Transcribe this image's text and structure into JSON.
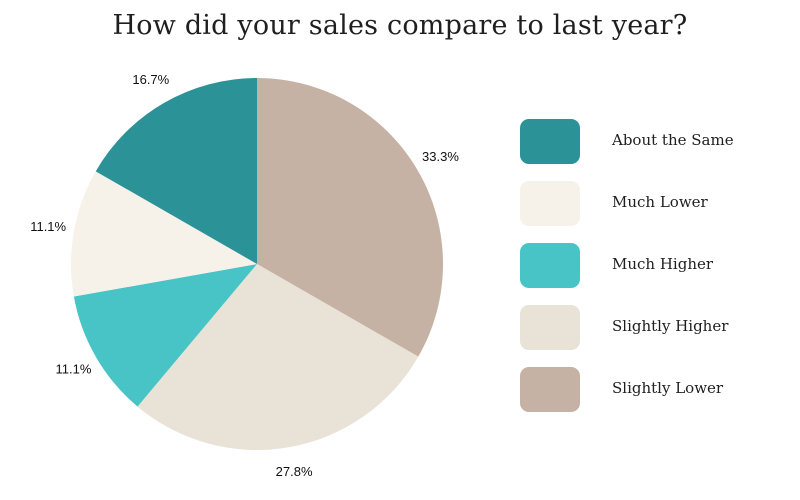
{
  "chart_data": {
    "type": "pie",
    "title": "How did your sales compare to last year?",
    "slices": [
      {
        "label": "Slightly Lower",
        "value": 33.3,
        "display": "33.3%",
        "color": "#c6b2a4"
      },
      {
        "label": "Slightly Higher",
        "value": 27.8,
        "display": "27.8%",
        "color": "#e9e2d7"
      },
      {
        "label": "Much Higher",
        "value": 11.1,
        "display": "11.1%",
        "color": "#48c3c6"
      },
      {
        "label": "Much Lower",
        "value": 11.1,
        "display": "11.1%",
        "color": "#f6f2e9"
      },
      {
        "label": "About the Same",
        "value": 16.7,
        "display": "16.7%",
        "color": "#2b9397"
      }
    ],
    "legend": {
      "position": "right",
      "items": [
        {
          "label": "About the Same",
          "color": "#2b9397"
        },
        {
          "label": "Much Lower",
          "color": "#f6f2e9"
        },
        {
          "label": "Much Higher",
          "color": "#48c3c6"
        },
        {
          "label": "Slightly Higher",
          "color": "#e9e2d7"
        },
        {
          "label": "Slightly Lower",
          "color": "#c6b2a4"
        }
      ]
    }
  }
}
